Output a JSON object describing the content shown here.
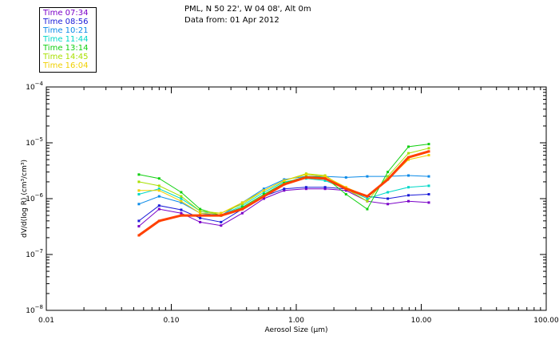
{
  "header": {
    "location": "PML, N 50 22', W 04 08', Alt 0m",
    "date": "Data from: 01 Apr 2012"
  },
  "legend": [
    {
      "label": "Time 07:34",
      "color": "#7a00c8"
    },
    {
      "label": "Time 08:56",
      "color": "#1a1ad8"
    },
    {
      "label": "Time 10:21",
      "color": "#0a8ae8"
    },
    {
      "label": "Time 11:44",
      "color": "#00d8c8"
    },
    {
      "label": "Time 13:14",
      "color": "#10d010"
    },
    {
      "label": "Time 14:45",
      "color": "#a8e000"
    },
    {
      "label": "Time 16:04",
      "color": "#f0d000"
    }
  ],
  "chart_data": {
    "type": "line",
    "x_scale": "log",
    "y_scale": "log",
    "xlabel": "Aerosol Size (μm)",
    "ylabel": "dV/d(log R) (cm³/cm³)",
    "xlim": [
      0.01,
      100
    ],
    "ylim": [
      1e-08,
      0.0001
    ],
    "x_ticks": [
      {
        "value": 0.01,
        "label": "0.01"
      },
      {
        "value": 0.1,
        "label": "0.10"
      },
      {
        "value": 1,
        "label": "1.00"
      },
      {
        "value": 10,
        "label": "10.00"
      },
      {
        "value": 100,
        "label": "100.00"
      }
    ],
    "y_ticks": [
      {
        "value": 1e-08,
        "base": "10",
        "exp": "−8"
      },
      {
        "value": 1e-07,
        "base": "10",
        "exp": "−7"
      },
      {
        "value": 1e-06,
        "base": "10",
        "exp": "−6"
      },
      {
        "value": 1e-05,
        "base": "10",
        "exp": "−5"
      },
      {
        "value": 0.0001,
        "base": "10",
        "exp": "−4"
      }
    ],
    "x": [
      0.055,
      0.08,
      0.12,
      0.17,
      0.25,
      0.37,
      0.55,
      0.8,
      1.2,
      1.7,
      2.5,
      3.7,
      5.4,
      7.9,
      11.5
    ],
    "series": [
      {
        "name": "Time 07:34",
        "color": "#7a00c8",
        "values": [
          3.2e-07,
          6.5e-07,
          5.5e-07,
          3.8e-07,
          3.3e-07,
          5.5e-07,
          1e-06,
          1.4e-06,
          1.5e-06,
          1.5e-06,
          1.4e-06,
          9e-07,
          8e-07,
          9e-07,
          8.5e-07
        ]
      },
      {
        "name": "Time 08:56",
        "color": "#1a1ad8",
        "values": [
          4e-07,
          7.5e-07,
          6.3e-07,
          4.5e-07,
          3.8e-07,
          6.5e-07,
          1.1e-06,
          1.5e-06,
          1.6e-06,
          1.6e-06,
          1.5e-06,
          1.1e-06,
          1e-06,
          1.15e-06,
          1.2e-06
        ]
      },
      {
        "name": "Time 10:21",
        "color": "#0a8ae8",
        "values": [
          8e-07,
          1.1e-06,
          8.5e-07,
          5.5e-07,
          5e-07,
          8.5e-07,
          1.5e-06,
          2.2e-06,
          2.5e-06,
          2.5e-06,
          2.4e-06,
          2.5e-06,
          2.5e-06,
          2.6e-06,
          2.5e-06
        ]
      },
      {
        "name": "Time 11:44",
        "color": "#00d8c8",
        "values": [
          1.2e-06,
          1.5e-06,
          1e-06,
          6e-07,
          5e-07,
          7.5e-07,
          1.3e-06,
          2e-06,
          2.3e-06,
          2.1e-06,
          1.5e-06,
          1e-06,
          1.3e-06,
          1.6e-06,
          1.7e-06
        ]
      },
      {
        "name": "Time 13:14",
        "color": "#10d010",
        "values": [
          2.7e-06,
          2.3e-06,
          1.3e-06,
          6.5e-07,
          5e-07,
          7e-07,
          1.2e-06,
          1.9e-06,
          2.5e-06,
          2.4e-06,
          1.2e-06,
          6.5e-07,
          3e-06,
          8.5e-06,
          9.5e-06
        ]
      },
      {
        "name": "Time 14:45",
        "color": "#a8e000",
        "values": [
          2e-06,
          1.7e-06,
          1.1e-06,
          6e-07,
          5.5e-07,
          8e-07,
          1.4e-06,
          2.1e-06,
          2.8e-06,
          2.6e-06,
          1.5e-06,
          9e-07,
          2.5e-06,
          6.5e-06,
          8e-06
        ]
      },
      {
        "name": "Time 16:04",
        "color": "#f0d000",
        "values": [
          1.4e-06,
          1.4e-06,
          9e-07,
          5.5e-07,
          5.5e-07,
          8.5e-07,
          1.4e-06,
          2.1e-06,
          2.7e-06,
          2.5e-06,
          1.6e-06,
          1.1e-06,
          2.2e-06,
          5e-06,
          6e-06
        ]
      },
      {
        "name": "",
        "color": "#ff4000",
        "values": [
          2.2e-07,
          4e-07,
          5e-07,
          5e-07,
          5e-07,
          6.5e-07,
          1.1e-06,
          1.8e-06,
          2.4e-06,
          2.3e-06,
          1.5e-06,
          1.1e-06,
          2.2e-06,
          5.5e-06,
          7e-06
        ]
      }
    ]
  }
}
